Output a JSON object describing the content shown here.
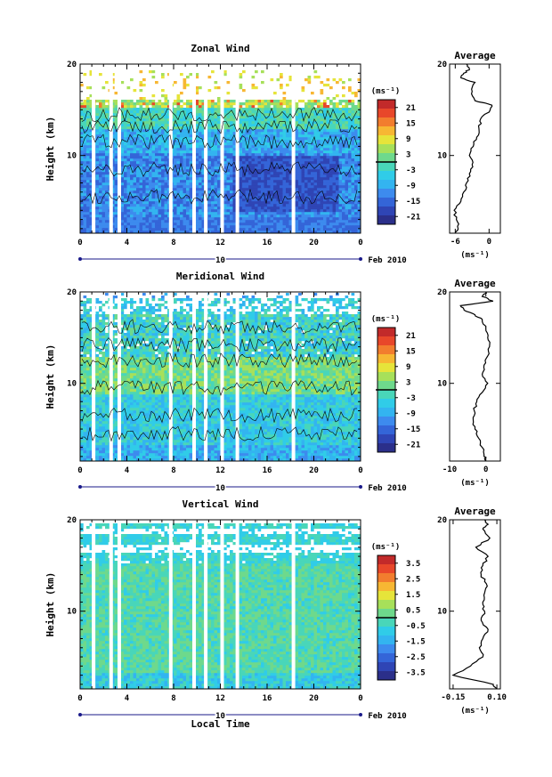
{
  "date_label": "Feb 2010",
  "day_label": "10",
  "xlabel": "Local Time",
  "height_label": "Height (km)",
  "unit_label": "(ms⁻¹)",
  "avg_title": "Average",
  "colormap": [
    "#2b2f8a",
    "#2f45b5",
    "#3465d8",
    "#3d8bee",
    "#33b4f0",
    "#30cce8",
    "#49d6b9",
    "#6ed98c",
    "#a7e05a",
    "#e6e43a",
    "#f7b733",
    "#f27d2e",
    "#e8472a",
    "#c22a2a"
  ],
  "chart_data": [
    {
      "type": "heatmap",
      "title": "Zonal Wind",
      "xlabel": "Local Time",
      "ylabel": "Height (km)",
      "xticks": [
        "0",
        "4",
        "8",
        "12",
        "16",
        "20",
        "0"
      ],
      "yticks": [
        "10",
        "20"
      ],
      "xlim": [
        0,
        24
      ],
      "ylim": [
        1.5,
        20
      ],
      "colorbar": {
        "unit": "(ms⁻¹)",
        "ticks": [
          "21",
          "15",
          "9",
          "3",
          "-3",
          "-9",
          "-15",
          "-21"
        ],
        "range": [
          -24,
          24
        ]
      },
      "field": "westward (-9 to -15) below 13 km, weak near 0 at 13-16 km, eastward 15-21 near 15 km, sparse above 16 km",
      "average": {
        "title": "Average",
        "xlabel": "(ms⁻¹)",
        "xticks": [
          "-6",
          "0"
        ],
        "yticks": [
          "10",
          "20"
        ],
        "xlim": [
          -7,
          2
        ],
        "height": [
          1.5,
          2,
          3,
          4,
          5,
          6,
          7,
          8,
          9,
          10,
          11,
          12,
          13,
          14,
          15,
          15.5,
          16,
          17,
          18,
          18.5,
          19,
          19.5,
          20
        ],
        "values": [
          -6,
          -5.5,
          -5.8,
          -6.2,
          -5,
          -4.5,
          -4,
          -3.5,
          -3,
          -3.5,
          -2.8,
          -2.2,
          -1.8,
          -1.5,
          0.2,
          0.5,
          -2.5,
          -3,
          -2.5,
          -5,
          -4.5,
          -3.5,
          -4
        ]
      }
    },
    {
      "type": "heatmap",
      "title": "Meridional Wind",
      "xlabel": "Local Time",
      "ylabel": "Height (km)",
      "xticks": [
        "0",
        "4",
        "8",
        "12",
        "16",
        "20",
        "0"
      ],
      "yticks": [
        "10",
        "20"
      ],
      "xlim": [
        0,
        24
      ],
      "ylim": [
        1.5,
        20
      ],
      "colorbar": {
        "unit": "(ms⁻¹)",
        "ticks": [
          "21",
          "15",
          "9",
          "3",
          "-3",
          "-9",
          "-15",
          "-21"
        ],
        "range": [
          -24,
          24
        ]
      },
      "field": "mostly -3 to -9 below 10 km, near 0 to +3 at 9-13 km, mixed up to 16 km, sparse above",
      "average": {
        "title": "Average",
        "xlabel": "(ms⁻¹)",
        "xticks": [
          "-10",
          "0"
        ],
        "yticks": [
          "10",
          "20"
        ],
        "xlim": [
          -10,
          4
        ],
        "height": [
          1.5,
          2,
          3,
          4,
          5,
          6,
          7,
          8,
          9,
          10,
          11,
          12,
          13,
          14,
          15,
          16,
          17,
          17.5,
          18,
          18.5,
          19,
          19.5,
          20
        ],
        "values": [
          0,
          -0.5,
          -1,
          -2,
          -3,
          -3.5,
          -3.2,
          -2.5,
          -1,
          0.5,
          -1,
          -0.5,
          0.5,
          1,
          0.5,
          0,
          -1,
          -3,
          -6,
          -7,
          2,
          -1,
          0
        ]
      }
    },
    {
      "type": "heatmap",
      "title": "Vertical Wind",
      "xlabel": "Local Time",
      "ylabel": "Height (km)",
      "xticks": [
        "0",
        "4",
        "8",
        "12",
        "16",
        "20",
        "0"
      ],
      "yticks": [
        "10",
        "20"
      ],
      "xlim": [
        0,
        24
      ],
      "ylim": [
        1.5,
        20
      ],
      "colorbar": {
        "unit": "(ms⁻¹)",
        "ticks": [
          "3.5",
          "2.5",
          "1.5",
          "0.5",
          "-0.5",
          "-1.5",
          "-2.5",
          "-3.5"
        ],
        "range": [
          -4,
          4
        ]
      },
      "field": "mostly 0 to +0.5 (green) with weak negative patches below 5 km, gaps near 17 and 19 km",
      "average": {
        "title": "Average",
        "xlabel": "(ms⁻¹)",
        "xticks": [
          "-0.15",
          "0.10"
        ],
        "yticks": [
          "10",
          "20"
        ],
        "xlim": [
          -0.17,
          0.12
        ],
        "height": [
          1.5,
          2,
          3,
          4,
          5,
          6,
          7,
          8,
          9,
          10,
          11,
          12,
          13,
          14,
          15,
          16,
          17,
          18,
          19,
          19.5,
          20
        ],
        "values": [
          0.1,
          0.08,
          -0.15,
          -0.05,
          0.02,
          0.0,
          0.02,
          0.05,
          0.01,
          0.03,
          0.02,
          0.03,
          0.04,
          0.01,
          0.02,
          0.05,
          -0.02,
          0.06,
          0.02,
          0.05,
          0.03
        ]
      }
    }
  ]
}
